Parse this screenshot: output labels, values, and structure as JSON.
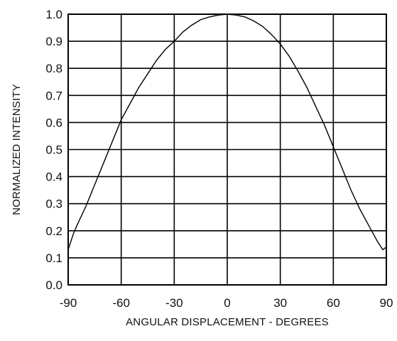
{
  "chart_data": {
    "type": "line",
    "title": "",
    "xlabel": "ANGULAR DISPLACEMENT - DEGREES",
    "ylabel": "NORMALIZED INTENSITY",
    "xlim": [
      -90,
      90
    ],
    "ylim": [
      0,
      1.0
    ],
    "xticks": [
      "-90",
      "-60",
      "-30",
      "0",
      "30",
      "60",
      "90"
    ],
    "yticks": [
      "0.0",
      "0.1",
      "0.2",
      "0.3",
      "0.4",
      "0.5",
      "0.6",
      "0.7",
      "0.8",
      "0.9",
      "1.0"
    ],
    "grid": true,
    "line_color": "#000000",
    "grid_color": "#000000",
    "series": [
      {
        "x": [
          -90,
          -87,
          -85,
          -80,
          -75,
          -70,
          -65,
          -60,
          -55,
          -50,
          -45,
          -40,
          -35,
          -30,
          -25,
          -20,
          -15,
          -10,
          -5,
          0,
          5,
          10,
          15,
          20,
          25,
          30,
          35,
          40,
          45,
          50,
          55,
          60,
          65,
          70,
          75,
          80,
          85,
          88,
          90
        ],
        "y": [
          0.13,
          0.19,
          0.22,
          0.29,
          0.37,
          0.45,
          0.53,
          0.61,
          0.67,
          0.73,
          0.78,
          0.83,
          0.87,
          0.9,
          0.935,
          0.96,
          0.98,
          0.99,
          0.997,
          1.0,
          0.997,
          0.99,
          0.975,
          0.955,
          0.925,
          0.89,
          0.845,
          0.79,
          0.73,
          0.66,
          0.59,
          0.51,
          0.43,
          0.35,
          0.28,
          0.22,
          0.16,
          0.13,
          0.14
        ]
      }
    ]
  }
}
